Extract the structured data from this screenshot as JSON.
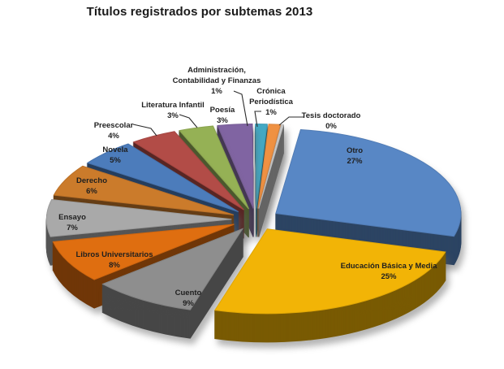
{
  "title": "Títulos registrados por subtemas 2013",
  "chart_data": {
    "type": "pie",
    "style": "3d-exploded-pie",
    "title": "Títulos registrados por subtemas 2013",
    "legend": "none",
    "label_format": "category name + percent",
    "unit": "%",
    "slices": [
      {
        "label": "Tesis doctorado",
        "value": 0,
        "color": "#C9C9C9"
      },
      {
        "label": "Otro",
        "value": 27,
        "color": "#5887C5"
      },
      {
        "label": "Educación Básica y Media",
        "value": 25,
        "color": "#F2B406"
      },
      {
        "label": "Cuento",
        "value": 9,
        "color": "#8E8E8E"
      },
      {
        "label": "Libros Universitarios",
        "value": 8,
        "color": "#DF6E10"
      },
      {
        "label": "Ensayo",
        "value": 7,
        "color": "#A9A9A9"
      },
      {
        "label": "Derecho",
        "value": 6,
        "color": "#CB7B2B"
      },
      {
        "label": "Novela",
        "value": 5,
        "color": "#4C7CBB"
      },
      {
        "label": "Preescolar",
        "value": 4,
        "color": "#B24C47"
      },
      {
        "label": "Literatura Infantil",
        "value": 3,
        "color": "#95B155"
      },
      {
        "label": "Poesía",
        "value": 3,
        "color": "#8064A2"
      },
      {
        "label": "Administración,\nContabilidad y Finanzas",
        "value": 1,
        "color": "#43A9C4"
      },
      {
        "label": "Crónica\nPeriodística",
        "value": 1,
        "color": "#EF9142"
      }
    ]
  }
}
